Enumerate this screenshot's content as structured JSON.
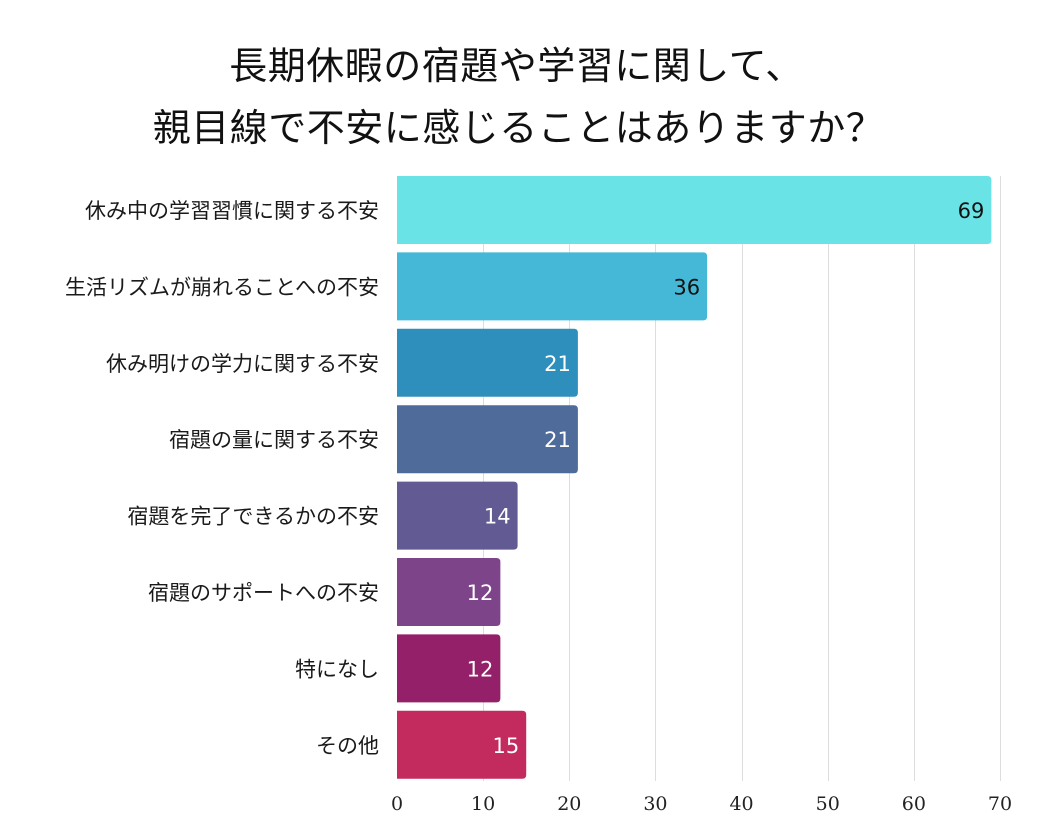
{
  "chart_data": {
    "type": "bar",
    "orientation": "horizontal",
    "title": [
      "長期休暇の宿題や学習に関して、",
      "親目線で不安に感じることはありますか？"
    ],
    "xlabel": "",
    "ylabel": "",
    "categories": [
      "休み中の学習習慣に関する不安",
      "生活リズムが崩れることへの不安",
      "休み明けの学力に関する不安",
      "宿題の量に関する不安",
      "宿題を完了できるかの不安",
      "宿題のサポートへの不安",
      "特になし",
      "その他"
    ],
    "values": [
      69,
      36,
      21,
      21,
      14,
      12,
      12,
      15
    ],
    "value_labels": [
      "69",
      "36",
      "21",
      "21",
      "14",
      "12",
      "12",
      "15"
    ],
    "colors": [
      "#6ae3e6",
      "#44b8d6",
      "#2e8fbd",
      "#4e6b99",
      "#625a93",
      "#7e4489",
      "#932068",
      "#c32a5e"
    ],
    "label_colors": [
      "#111111",
      "#111111",
      "#ffffff",
      "#ffffff",
      "#ffffff",
      "#ffffff",
      "#ffffff",
      "#ffffff"
    ],
    "xlim": [
      0,
      70
    ],
    "xticks": [
      0,
      10,
      20,
      30,
      40,
      50,
      60,
      70
    ],
    "xtick_labels": [
      "0",
      "10",
      "20",
      "30",
      "40",
      "50",
      "60",
      "70"
    ],
    "grid": true,
    "grid_color": "#dddddd",
    "legend": "none"
  }
}
